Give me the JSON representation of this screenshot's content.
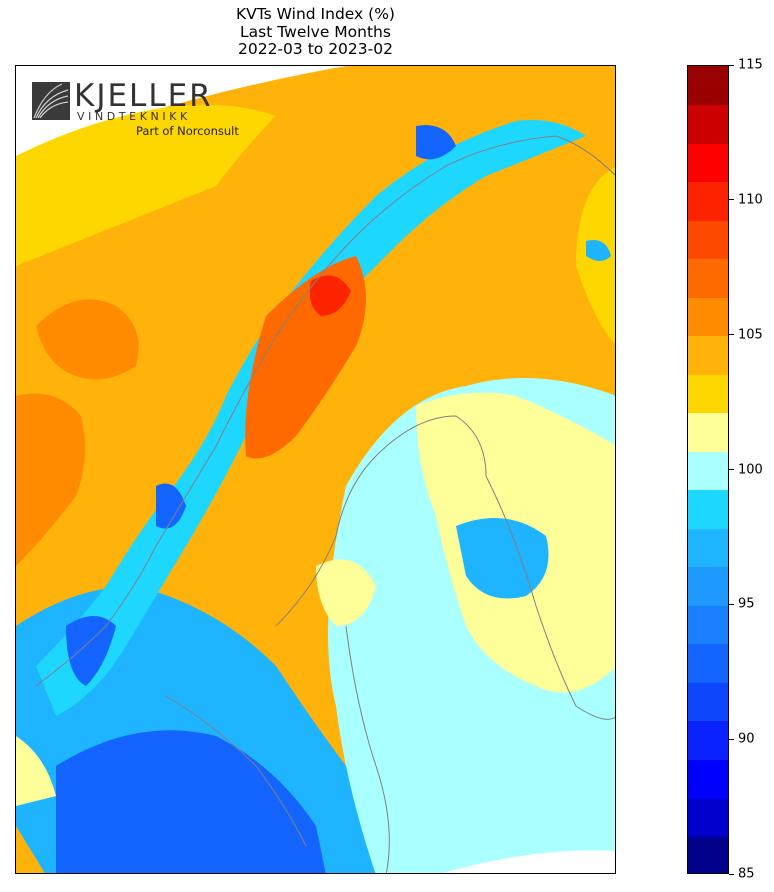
{
  "title": {
    "line1": "KVTs Wind Index (%)",
    "line2": "Last Twelve Months",
    "line3": "2022-03 to 2023-02"
  },
  "logo": {
    "name": "KJELLER",
    "subname": "VINDTEKNIKK",
    "tagline": "Part of Norconsult"
  },
  "colorbar": {
    "min": 85,
    "max": 115,
    "step": 1.5,
    "ticks": [
      "85",
      "90",
      "95",
      "100",
      "105",
      "110",
      "115"
    ],
    "colors": [
      "#00008b",
      "#0000cd",
      "#0000ff",
      "#0a22ff",
      "#0f46ff",
      "#1464ff",
      "#1a80ff",
      "#1e99ff",
      "#1eb4ff",
      "#1ed7ff",
      "#aaffff",
      "#ffff9a",
      "#ffd700",
      "#ffb20a",
      "#ff8c00",
      "#ff6a00",
      "#ff4800",
      "#ff2400",
      "#ff0000",
      "#cc0000",
      "#990000"
    ]
  },
  "map": {
    "colors": {
      "ocean_north": "#ffb20a",
      "ocean_far": "#ff8c00",
      "inland_high": "#ff6a00",
      "mountain_low": "#1ed7ff",
      "mountain_deep": "#1464ff",
      "baltic": "#aaffff",
      "finland": "#ffff9a",
      "gulf": "#ffd700",
      "south_sea": "#1eb4ff",
      "coastline": "#808080"
    }
  }
}
